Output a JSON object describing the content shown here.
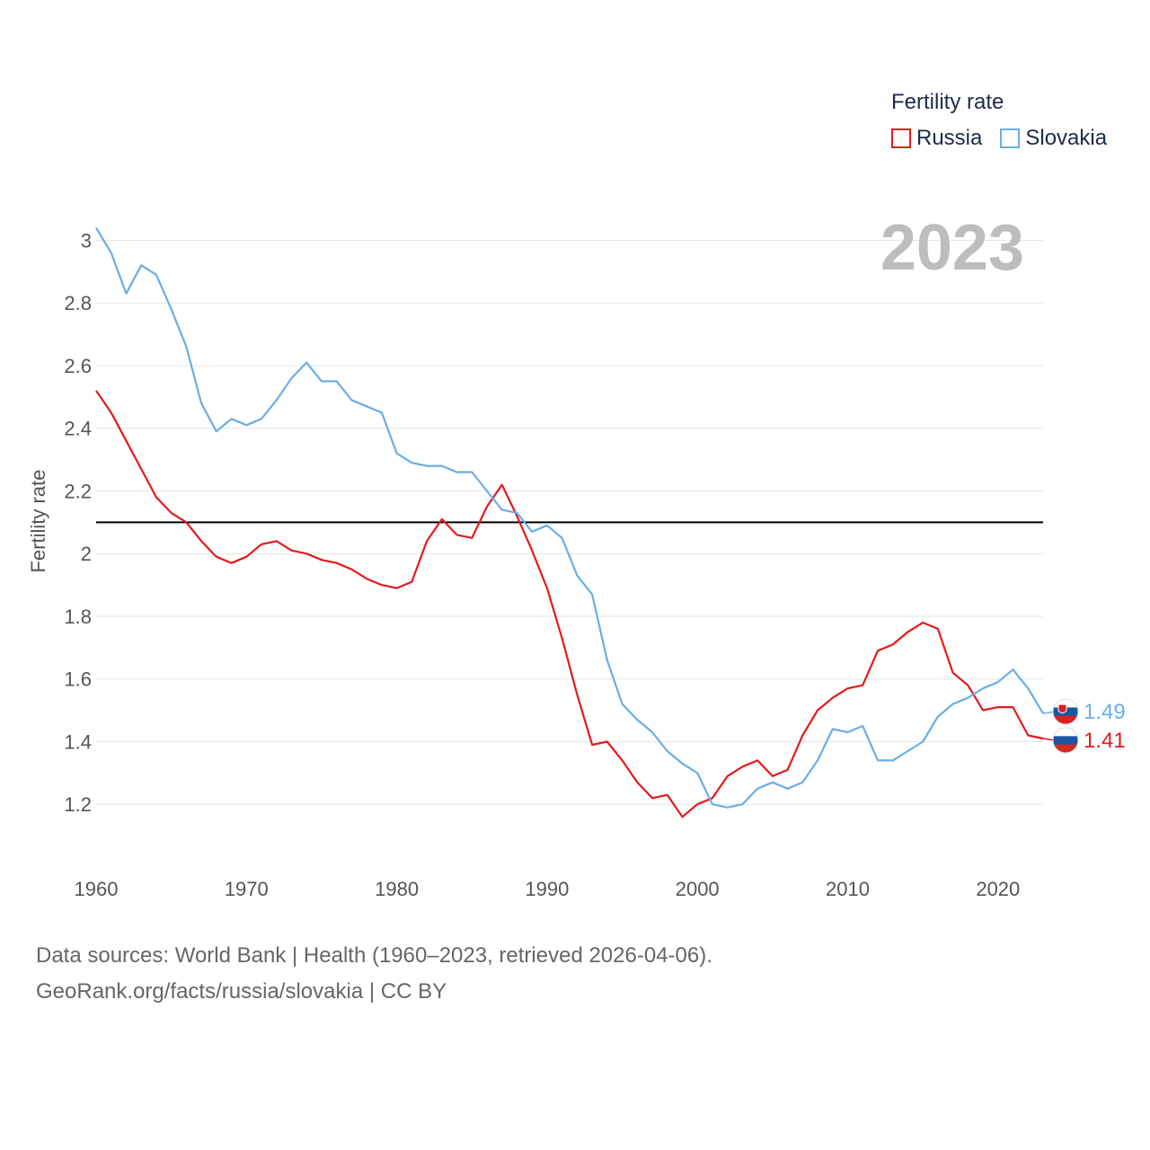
{
  "legend": {
    "title": "Fertility rate",
    "items": [
      {
        "name": "Russia",
        "color": "#e31a1c"
      },
      {
        "name": "Slovakia",
        "color": "#6aaee6"
      }
    ]
  },
  "year_label": "2023",
  "footer": {
    "line1": "Data sources: World Bank | Health (1960–2023, retrieved 2026-04-06).",
    "line2": "GeoRank.org/facts/russia/slovakia | CC BY"
  },
  "chart_data": {
    "type": "line",
    "title": "",
    "xlabel": "",
    "ylabel": "Fertility rate",
    "xlim": [
      1960,
      2023
    ],
    "ylim": [
      1.0,
      3.05
    ],
    "yticks": [
      1.2,
      1.4,
      1.6,
      1.8,
      2,
      2.2,
      2.4,
      2.6,
      2.8,
      3
    ],
    "ytick_labels": [
      "1.2",
      "1.4",
      "1.6",
      "1.8",
      "2",
      "2.2",
      "2.4",
      "2.6",
      "2.8",
      "3"
    ],
    "xticks": [
      1960,
      1970,
      1980,
      1990,
      2000,
      2010,
      2020
    ],
    "xtick_labels": [
      "1960",
      "1970",
      "1980",
      "1990",
      "2000",
      "2010",
      "2020"
    ],
    "reference_line": {
      "y": 2.1,
      "color": "#000000"
    },
    "grid": true,
    "x": [
      1960,
      1961,
      1962,
      1963,
      1964,
      1965,
      1966,
      1967,
      1968,
      1969,
      1970,
      1971,
      1972,
      1973,
      1974,
      1975,
      1976,
      1977,
      1978,
      1979,
      1980,
      1981,
      1982,
      1983,
      1984,
      1985,
      1986,
      1987,
      1988,
      1989,
      1990,
      1991,
      1992,
      1993,
      1994,
      1995,
      1996,
      1997,
      1998,
      1999,
      2000,
      2001,
      2002,
      2003,
      2004,
      2005,
      2006,
      2007,
      2008,
      2009,
      2010,
      2011,
      2012,
      2013,
      2014,
      2015,
      2016,
      2017,
      2018,
      2019,
      2020,
      2021,
      2022,
      2023
    ],
    "series": [
      {
        "name": "Russia",
        "color": "#e31a1c",
        "end_label": "1.41",
        "values": [
          2.52,
          2.45,
          2.36,
          2.27,
          2.18,
          2.13,
          2.1,
          2.04,
          1.99,
          1.97,
          1.99,
          2.03,
          2.04,
          2.01,
          2.0,
          1.98,
          1.97,
          1.95,
          1.92,
          1.9,
          1.89,
          1.91,
          2.04,
          2.11,
          2.06,
          2.05,
          2.15,
          2.22,
          2.12,
          2.01,
          1.89,
          1.73,
          1.55,
          1.39,
          1.4,
          1.34,
          1.27,
          1.22,
          1.23,
          1.16,
          1.2,
          1.22,
          1.29,
          1.32,
          1.34,
          1.29,
          1.31,
          1.42,
          1.5,
          1.54,
          1.57,
          1.58,
          1.69,
          1.71,
          1.75,
          1.78,
          1.76,
          1.62,
          1.58,
          1.5,
          1.51,
          1.51,
          1.42,
          1.41
        ]
      },
      {
        "name": "Slovakia",
        "color": "#6aaee6",
        "end_label": "1.49",
        "values": [
          3.04,
          2.96,
          2.83,
          2.92,
          2.89,
          2.78,
          2.66,
          2.48,
          2.39,
          2.43,
          2.41,
          2.43,
          2.49,
          2.56,
          2.61,
          2.55,
          2.55,
          2.49,
          2.47,
          2.45,
          2.32,
          2.29,
          2.28,
          2.28,
          2.26,
          2.26,
          2.2,
          2.14,
          2.13,
          2.07,
          2.09,
          2.05,
          1.93,
          1.87,
          1.66,
          1.52,
          1.47,
          1.43,
          1.37,
          1.33,
          1.3,
          1.2,
          1.19,
          1.2,
          1.25,
          1.27,
          1.25,
          1.27,
          1.34,
          1.44,
          1.43,
          1.45,
          1.34,
          1.34,
          1.37,
          1.4,
          1.48,
          1.52,
          1.54,
          1.57,
          1.59,
          1.63,
          1.57,
          1.49
        ]
      }
    ]
  }
}
